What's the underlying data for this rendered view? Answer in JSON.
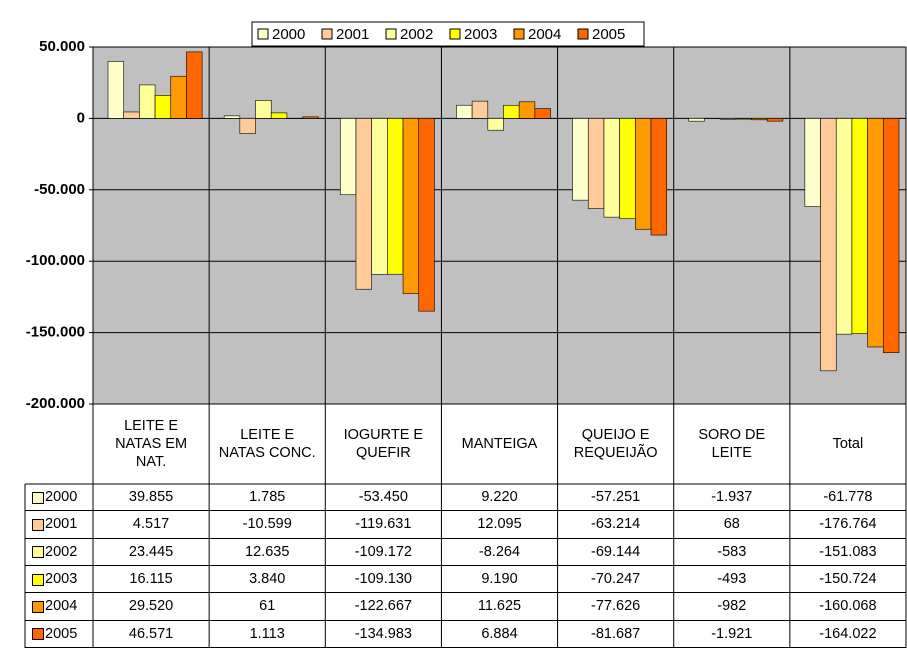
{
  "chart_data": {
    "type": "bar",
    "categories": [
      "LEITE E NATAS EM NAT.",
      "LEITE E NATAS CONC.",
      "IOGURTE E QUEFIR",
      "MANTEIGA",
      "QUEIJO E REQUEIJÃO",
      "SORO DE LEITE",
      "Total"
    ],
    "series": [
      {
        "name": "2000",
        "color": "#ffffcc",
        "values": [
          39855,
          1785,
          -53450,
          9220,
          -57251,
          -1937,
          -61778
        ],
        "value_labels": [
          "39.855",
          "1.785",
          "-53.450",
          "9.220",
          "-57.251",
          "-1.937",
          "-61.778"
        ]
      },
      {
        "name": "2001",
        "color": "#ffcc99",
        "values": [
          4517,
          -10599,
          -119631,
          12095,
          -63214,
          68,
          -176764
        ],
        "value_labels": [
          "4.517",
          "-10.599",
          "-119.631",
          "12.095",
          "-63.214",
          "68",
          "-176.764"
        ]
      },
      {
        "name": "2002",
        "color": "#ffff99",
        "values": [
          23445,
          12635,
          -109172,
          -8264,
          -69144,
          -583,
          -151083
        ],
        "value_labels": [
          "23.445",
          "12.635",
          "-109.172",
          "-8.264",
          "-69.144",
          "-583",
          "-151.083"
        ]
      },
      {
        "name": "2003",
        "color": "#ffff00",
        "values": [
          16115,
          3840,
          -109130,
          9190,
          -70247,
          -493,
          -150724
        ],
        "value_labels": [
          "16.115",
          "3.840",
          "-109.130",
          "9.190",
          "-70.247",
          "-493",
          "-150.724"
        ]
      },
      {
        "name": "2004",
        "color": "#ff9900",
        "values": [
          29520,
          61,
          -122667,
          11625,
          -77626,
          -982,
          -160068
        ],
        "value_labels": [
          "29.520",
          "61",
          "-122.667",
          "11.625",
          "-77.626",
          "-982",
          "-160.068"
        ]
      },
      {
        "name": "2005",
        "color": "#ff6600",
        "values": [
          46571,
          1113,
          -134983,
          6884,
          -81687,
          -1921,
          -164022
        ],
        "value_labels": [
          "46.571",
          "1.113",
          "-134.983",
          "6.884",
          "-81.687",
          "-1.921",
          "-164.022"
        ]
      }
    ],
    "ylim": [
      -200000,
      50000
    ],
    "yticks": [
      {
        "value": -200000,
        "label": "-200.000"
      },
      {
        "value": -150000,
        "label": "-150.000"
      },
      {
        "value": -100000,
        "label": "-100.000"
      },
      {
        "value": -50000,
        "label": "-50.000"
      },
      0,
      {
        "value": 50000,
        "label": "50.000"
      }
    ],
    "grid": true,
    "legend": "top"
  }
}
